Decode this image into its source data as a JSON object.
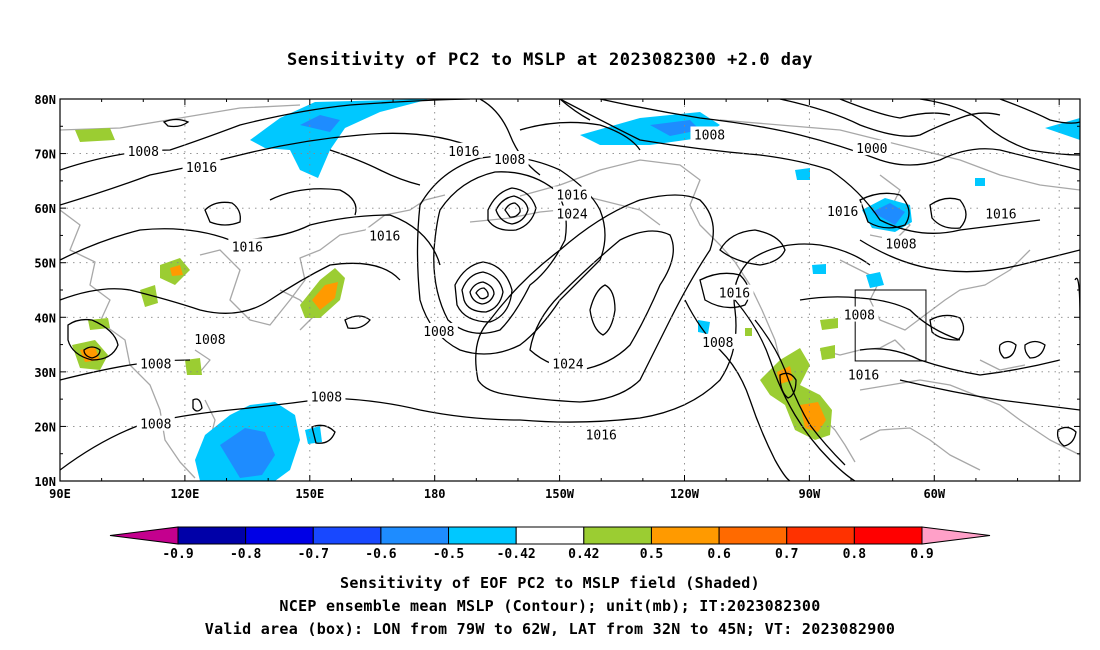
{
  "title": "Sensitivity of PC2 to MSLP at 2023082300 +2.0 day",
  "map": {
    "lon_labels": [
      "90E",
      "120E",
      "150E",
      "180",
      "150W",
      "120W",
      "90W",
      "60W"
    ],
    "lat_labels": [
      "80N",
      "70N",
      "60N",
      "50N",
      "40N",
      "30N",
      "20N",
      "10N"
    ],
    "contour_labels": [
      {
        "text": "1008",
        "lon": 110,
        "lat": 70.5
      },
      {
        "text": "1016",
        "lon": 124,
        "lat": 67.5
      },
      {
        "text": "1016",
        "lon": 135,
        "lat": 53
      },
      {
        "text": "1016",
        "lon": 168,
        "lat": 55
      },
      {
        "text": "1008",
        "lon": 126,
        "lat": 36
      },
      {
        "text": "1008",
        "lon": 113,
        "lat": 31.5
      },
      {
        "text": "1008",
        "lon": 113,
        "lat": 20.5
      },
      {
        "text": "1008",
        "lon": 154,
        "lat": 25.5
      },
      {
        "text": "1016",
        "lon": 187,
        "lat": 70.5
      },
      {
        "text": "1008",
        "lon": 198,
        "lat": 69
      },
      {
        "text": "1016",
        "lon": 213,
        "lat": 62.5
      },
      {
        "text": "1024",
        "lon": 213,
        "lat": 59
      },
      {
        "text": "1008",
        "lon": 181,
        "lat": 37.5
      },
      {
        "text": "1024",
        "lon": 212,
        "lat": 31.5
      },
      {
        "text": "1016",
        "lon": 220,
        "lat": 18.5
      },
      {
        "text": "1008",
        "lon": 246,
        "lat": 73.5
      },
      {
        "text": "1000",
        "lon": 285,
        "lat": 71
      },
      {
        "text": "1016",
        "lon": 278,
        "lat": 59.5
      },
      {
        "text": "1008",
        "lon": 292,
        "lat": 53.5
      },
      {
        "text": "1016",
        "lon": 316,
        "lat": 59
      },
      {
        "text": "1016",
        "lon": 252,
        "lat": 44.5
      },
      {
        "text": "1008",
        "lon": 248,
        "lat": 35.5
      },
      {
        "text": "1008",
        "lon": 282,
        "lat": 40.5
      },
      {
        "text": "1016",
        "lon": 283,
        "lat": 29.5
      }
    ],
    "colorbar": {
      "labels": [
        "-0.9",
        "-0.8",
        "-0.7",
        "-0.6",
        "-0.5",
        "-0.42",
        "0.42",
        "0.5",
        "0.6",
        "0.7",
        "0.8",
        "0.9"
      ],
      "colors": [
        "#c4008e",
        "#0000a8",
        "#0000e6",
        "#1848ff",
        "#1e8cff",
        "#00c8ff",
        "#ffffff",
        "#9bcd32",
        "#ff9a00",
        "#ff6a00",
        "#ff3200",
        "#ff0000",
        "#ffa0c8"
      ]
    },
    "valid_box": {
      "lon_min": -79,
      "lon_max": -62,
      "lat_min": 32,
      "lat_max": 45
    }
  },
  "caption": {
    "line1": "Sensitivity of EOF PC2 to MSLP field (Shaded)",
    "line2": "NCEP ensemble mean MSLP (Contour); unit(mb); IT:2023082300",
    "line3": "Valid area (box): LON from 79W to 62W, LAT from 32N to 45N; VT: 2023082900"
  }
}
